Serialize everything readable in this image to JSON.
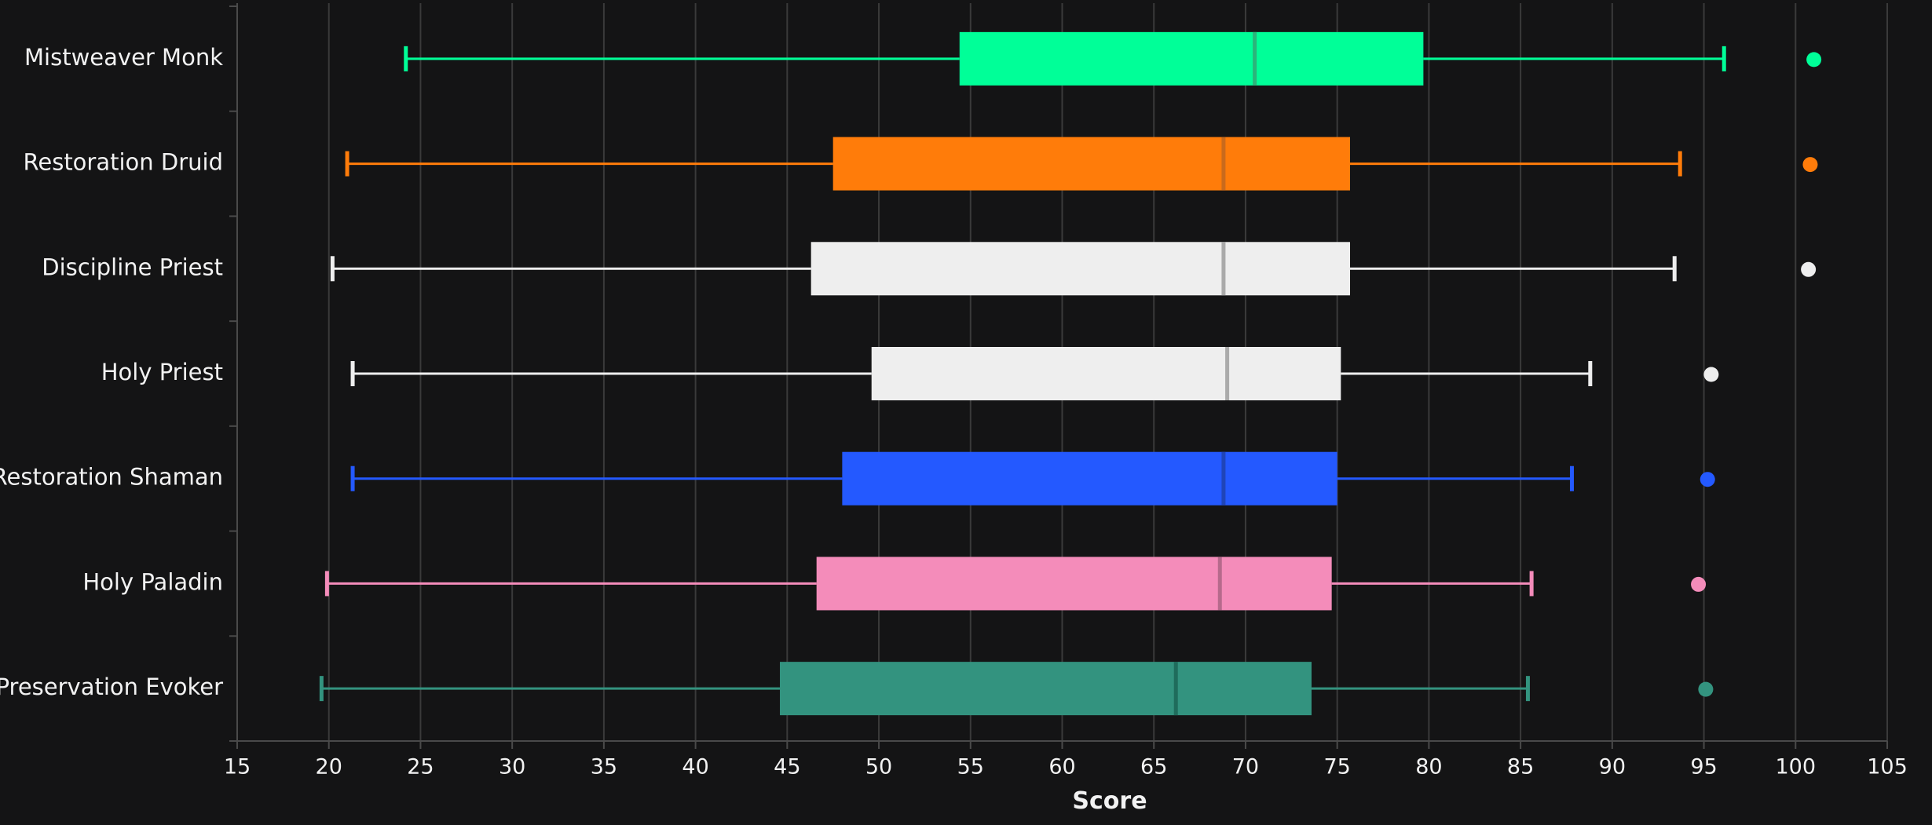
{
  "chart_data": {
    "type": "box",
    "orientation": "horizontal",
    "xlabel": "Score",
    "ylabel": "",
    "xlim": [
      15,
      105
    ],
    "xticks": [
      15,
      20,
      25,
      30,
      35,
      40,
      45,
      50,
      55,
      60,
      65,
      70,
      75,
      80,
      85,
      90,
      95,
      100,
      105
    ],
    "grid": true,
    "categories": [
      "Mistweaver Monk",
      "Restoration Druid",
      "Discipline Priest",
      "Holy Priest",
      "Restoration Shaman",
      "Holy Paladin",
      "Preservation Evoker"
    ],
    "series": [
      {
        "category": "Mistweaver Monk",
        "color": "#00ff98",
        "median_color": "#2bb57b",
        "whisker_low": 24.2,
        "q1": 54.4,
        "median": 70.5,
        "q3": 79.7,
        "whisker_high": 96.1,
        "outliers": [
          101.0
        ]
      },
      {
        "category": "Restoration Druid",
        "color": "#ff7c0a",
        "median_color": "#c96a1c",
        "whisker_low": 21.0,
        "q1": 47.5,
        "median": 68.8,
        "q3": 75.7,
        "whisker_high": 93.7,
        "outliers": [
          100.8
        ]
      },
      {
        "category": "Discipline Priest",
        "color": "#eeeeee",
        "median_color": "#aaaaaa",
        "whisker_low": 20.2,
        "q1": 46.3,
        "median": 68.8,
        "q3": 75.7,
        "whisker_high": 93.4,
        "outliers": [
          100.7
        ]
      },
      {
        "category": "Holy Priest",
        "color": "#eeeeee",
        "median_color": "#aaaaaa",
        "whisker_low": 21.3,
        "q1": 49.6,
        "median": 69.0,
        "q3": 75.2,
        "whisker_high": 88.8,
        "outliers": [
          95.4
        ]
      },
      {
        "category": "Restoration Shaman",
        "color": "#2459ff",
        "median_color": "#1f45b8",
        "whisker_low": 21.3,
        "q1": 48.0,
        "median": 68.8,
        "q3": 75.0,
        "whisker_high": 87.8,
        "outliers": [
          95.2
        ]
      },
      {
        "category": "Holy Paladin",
        "color": "#f48cba",
        "median_color": "#b66a8c",
        "whisker_low": 19.9,
        "q1": 46.6,
        "median": 68.6,
        "q3": 74.7,
        "whisker_high": 85.6,
        "outliers": [
          94.7
        ]
      },
      {
        "category": "Preservation Evoker",
        "color": "#33937f",
        "median_color": "#1f6c5c",
        "whisker_low": 19.6,
        "q1": 44.6,
        "median": 66.2,
        "q3": 73.6,
        "whisker_high": 85.4,
        "outliers": [
          95.1
        ]
      }
    ]
  }
}
